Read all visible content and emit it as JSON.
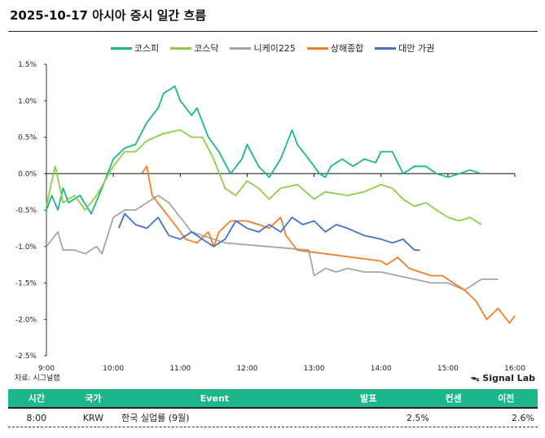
{
  "title": "2025-10-17 아시아 증시 일간 흐름",
  "source": "자료: 시그널랩",
  "brand": "Signal Lab",
  "chart_data": {
    "type": "line",
    "title": "2025-10-17 아시아 증시 일간 흐름",
    "xlabel": "",
    "ylabel": "",
    "xlim": [
      9,
      16
    ],
    "ylim": [
      -2.5,
      1.5
    ],
    "x_ticks": [
      "9:00",
      "10:00",
      "11:00",
      "12:00",
      "13:00",
      "14:00",
      "15:00",
      "16:00"
    ],
    "y_ticks": [
      "1.5%",
      "1.0%",
      "0.5%",
      "0.0%",
      "-0.5%",
      "-1.0%",
      "-1.5%",
      "-2.0%",
      "-2.5%"
    ],
    "legend_position": "top",
    "series": [
      {
        "name": "코스피",
        "color": "#1db58a",
        "points": [
          [
            9,
            -0.5
          ],
          [
            9.08,
            -0.3
          ],
          [
            9.17,
            -0.5
          ],
          [
            9.25,
            -0.2
          ],
          [
            9.33,
            -0.4
          ],
          [
            9.5,
            -0.3
          ],
          [
            9.67,
            -0.55
          ],
          [
            9.83,
            -0.2
          ],
          [
            10,
            0.2
          ],
          [
            10.17,
            0.35
          ],
          [
            10.33,
            0.4
          ],
          [
            10.5,
            0.7
          ],
          [
            10.67,
            0.9
          ],
          [
            10.75,
            1.1
          ],
          [
            10.92,
            1.2
          ],
          [
            11,
            1.0
          ],
          [
            11.17,
            0.8
          ],
          [
            11.25,
            0.9
          ],
          [
            11.42,
            0.5
          ],
          [
            11.58,
            0.3
          ],
          [
            11.75,
            0.0
          ],
          [
            11.92,
            0.2
          ],
          [
            12,
            0.4
          ],
          [
            12.17,
            0.1
          ],
          [
            12.33,
            -0.05
          ],
          [
            12.5,
            0.2
          ],
          [
            12.67,
            0.6
          ],
          [
            12.75,
            0.4
          ],
          [
            12.92,
            0.2
          ],
          [
            13,
            0.1
          ],
          [
            13.08,
            0.0
          ],
          [
            13.17,
            -0.05
          ],
          [
            13.25,
            0.1
          ],
          [
            13.42,
            0.2
          ],
          [
            13.58,
            0.1
          ],
          [
            13.75,
            0.2
          ],
          [
            13.92,
            0.15
          ],
          [
            14,
            0.3
          ],
          [
            14.17,
            0.3
          ],
          [
            14.33,
            0.0
          ],
          [
            14.5,
            0.1
          ],
          [
            14.67,
            0.1
          ],
          [
            14.83,
            0.0
          ],
          [
            15,
            -0.05
          ],
          [
            15.17,
            0.0
          ],
          [
            15.33,
            0.05
          ],
          [
            15.5,
            0.0
          ]
        ]
      },
      {
        "name": "코스닥",
        "color": "#8fce4a",
        "points": [
          [
            9,
            -0.45
          ],
          [
            9.08,
            -0.1
          ],
          [
            9.13,
            0.1
          ],
          [
            9.25,
            -0.4
          ],
          [
            9.42,
            -0.3
          ],
          [
            9.58,
            -0.5
          ],
          [
            9.75,
            -0.3
          ],
          [
            10,
            0.1
          ],
          [
            10.17,
            0.3
          ],
          [
            10.33,
            0.3
          ],
          [
            10.5,
            0.45
          ],
          [
            10.75,
            0.55
          ],
          [
            11,
            0.6
          ],
          [
            11.17,
            0.5
          ],
          [
            11.33,
            0.5
          ],
          [
            11.5,
            0.2
          ],
          [
            11.67,
            -0.2
          ],
          [
            11.83,
            -0.3
          ],
          [
            12,
            -0.1
          ],
          [
            12.17,
            -0.2
          ],
          [
            12.33,
            -0.35
          ],
          [
            12.5,
            -0.2
          ],
          [
            12.75,
            -0.15
          ],
          [
            13,
            -0.35
          ],
          [
            13.17,
            -0.25
          ],
          [
            13.5,
            -0.3
          ],
          [
            13.75,
            -0.25
          ],
          [
            14,
            -0.15
          ],
          [
            14.17,
            -0.2
          ],
          [
            14.33,
            -0.35
          ],
          [
            14.5,
            -0.45
          ],
          [
            14.67,
            -0.4
          ],
          [
            14.83,
            -0.5
          ],
          [
            15,
            -0.6
          ],
          [
            15.17,
            -0.65
          ],
          [
            15.33,
            -0.6
          ],
          [
            15.5,
            -0.7
          ]
        ]
      },
      {
        "name": "니케이225",
        "color": "#a6a6a6",
        "points": [
          [
            9,
            -1.0
          ],
          [
            9.17,
            -0.8
          ],
          [
            9.25,
            -1.05
          ],
          [
            9.42,
            -1.05
          ],
          [
            9.58,
            -1.1
          ],
          [
            9.75,
            -1.0
          ],
          [
            9.83,
            -1.1
          ],
          [
            10,
            -0.6
          ],
          [
            10.17,
            -0.5
          ],
          [
            10.33,
            -0.5
          ],
          [
            10.5,
            -0.4
          ],
          [
            10.67,
            -0.3
          ],
          [
            10.83,
            -0.4
          ],
          [
            11,
            -0.6
          ],
          [
            11.17,
            -0.8
          ],
          [
            11.33,
            -0.85
          ],
          [
            11.5,
            -0.9
          ],
          [
            11.67,
            -0.95
          ],
          [
            12.92,
            -1.05
          ],
          [
            13,
            -1.4
          ],
          [
            13.17,
            -1.3
          ],
          [
            13.33,
            -1.35
          ],
          [
            13.5,
            -1.3
          ],
          [
            13.75,
            -1.35
          ],
          [
            14,
            -1.35
          ],
          [
            14.25,
            -1.4
          ],
          [
            14.5,
            -1.45
          ],
          [
            14.75,
            -1.5
          ],
          [
            15,
            -1.5
          ],
          [
            15.25,
            -1.6
          ],
          [
            15.5,
            -1.45
          ],
          [
            15.75,
            -1.45
          ]
        ]
      },
      {
        "name": "상해종합",
        "color": "#f07f2c",
        "points": [
          [
            10.42,
            0.0
          ],
          [
            10.5,
            0.1
          ],
          [
            10.58,
            -0.3
          ],
          [
            10.75,
            -0.5
          ],
          [
            10.92,
            -0.7
          ],
          [
            11.08,
            -0.9
          ],
          [
            11.25,
            -0.95
          ],
          [
            11.42,
            -0.8
          ],
          [
            11.5,
            -1.0
          ],
          [
            11.58,
            -0.8
          ],
          [
            11.75,
            -0.65
          ],
          [
            12,
            -0.65
          ],
          [
            12.17,
            -0.7
          ],
          [
            12.33,
            -0.75
          ],
          [
            12.5,
            -0.6
          ],
          [
            12.58,
            -0.85
          ],
          [
            12.75,
            -1.05
          ],
          [
            14,
            -1.2
          ],
          [
            14.08,
            -1.25
          ],
          [
            14.25,
            -1.15
          ],
          [
            14.42,
            -1.3
          ],
          [
            14.58,
            -1.35
          ],
          [
            14.75,
            -1.4
          ],
          [
            14.92,
            -1.4
          ],
          [
            15.08,
            -1.5
          ],
          [
            15.25,
            -1.6
          ],
          [
            15.42,
            -1.75
          ],
          [
            15.58,
            -2.0
          ],
          [
            15.75,
            -1.85
          ],
          [
            15.92,
            -2.05
          ],
          [
            16,
            -1.95
          ]
        ]
      },
      {
        "name": "대만 가권",
        "color": "#4472c4",
        "points": [
          [
            10.08,
            -0.75
          ],
          [
            10.17,
            -0.55
          ],
          [
            10.33,
            -0.7
          ],
          [
            10.5,
            -0.75
          ],
          [
            10.67,
            -0.6
          ],
          [
            10.83,
            -0.85
          ],
          [
            11,
            -0.9
          ],
          [
            11.17,
            -0.8
          ],
          [
            11.33,
            -0.9
          ],
          [
            11.5,
            -1.0
          ],
          [
            11.67,
            -0.9
          ],
          [
            11.83,
            -0.65
          ],
          [
            12,
            -0.75
          ],
          [
            12.17,
            -0.8
          ],
          [
            12.33,
            -0.7
          ],
          [
            12.5,
            -0.8
          ],
          [
            12.67,
            -0.6
          ],
          [
            12.83,
            -0.7
          ],
          [
            13,
            -0.65
          ],
          [
            13.17,
            -0.8
          ],
          [
            13.33,
            -0.7
          ],
          [
            13.5,
            -0.75
          ],
          [
            13.75,
            -0.85
          ],
          [
            14,
            -0.9
          ],
          [
            14.17,
            -0.95
          ],
          [
            14.33,
            -0.9
          ],
          [
            14.5,
            -1.05
          ],
          [
            14.58,
            -1.05
          ]
        ]
      }
    ]
  },
  "table": {
    "headers": [
      "시간",
      "국가",
      "Event",
      "발표",
      "컨센",
      "이전"
    ],
    "rows": [
      [
        "8:00",
        "KRW",
        "한국 실업률 (9월)",
        "2.5%",
        "",
        "2.6%"
      ]
    ]
  }
}
